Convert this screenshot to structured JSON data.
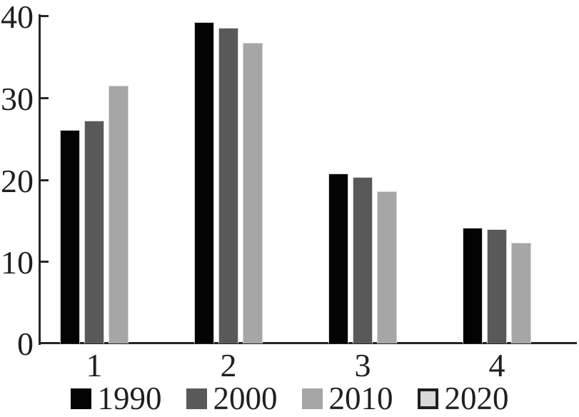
{
  "chart_data": {
    "type": "bar",
    "title": "",
    "xlabel": "",
    "ylabel": "",
    "categories": [
      "1",
      "2",
      "3",
      "4"
    ],
    "series": [
      {
        "name": "1990",
        "color": "#030303",
        "values": [
          26.1,
          39.2,
          20.7,
          14.1
        ]
      },
      {
        "name": "2000",
        "color": "#595959",
        "values": [
          27.2,
          38.5,
          20.3,
          13.9
        ]
      },
      {
        "name": "2010",
        "color": "#a6a6a6",
        "values": [
          31.5,
          36.7,
          18.6,
          12.3
        ]
      },
      {
        "name": "2020",
        "color": "#d9d9d9",
        "values": []
      }
    ],
    "note": "2020 appears in the legend only; no 2020 bars are visible in the plot",
    "ylim": [
      0,
      40
    ],
    "yticks": [
      0,
      10,
      20,
      30,
      40
    ],
    "grid": false,
    "tick_style": "inward",
    "legend": {
      "position": "bottom",
      "entries": [
        {
          "label": "1990",
          "color": "#030303",
          "outlined": false
        },
        {
          "label": "2000",
          "color": "#595959",
          "outlined": false
        },
        {
          "label": "2010",
          "color": "#a6a6a6",
          "outlined": false
        },
        {
          "label": "2020",
          "color": "#d9d9d9",
          "outlined": true
        }
      ]
    },
    "axis_color": "#262626",
    "text_color": "#1f1f1f",
    "background_color": "#ffffff"
  }
}
